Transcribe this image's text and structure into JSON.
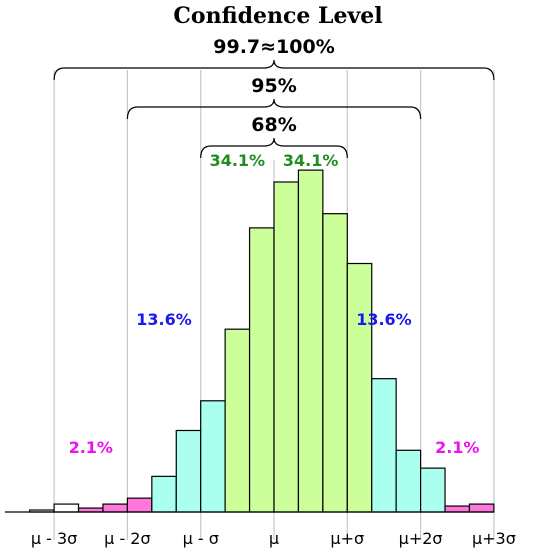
{
  "chart_data": {
    "type": "bar",
    "title": "Confidence Level",
    "xlim": [
      -3.25,
      3.0
    ],
    "ylim": [
      0,
      1
    ],
    "bin_width": 0.3333333,
    "bins": [
      {
        "x": -3.1667,
        "value": 0.006,
        "color": "#ffffff"
      },
      {
        "x": -2.8333,
        "value": 0.024,
        "color": "#ffffff"
      },
      {
        "x": -2.5,
        "value": 0.012,
        "color": "#ff77dd"
      },
      {
        "x": -2.1667,
        "value": 0.024,
        "color": "#ff77dd"
      },
      {
        "x": -1.8333,
        "value": 0.042,
        "color": "#ff77dd"
      },
      {
        "x": -1.5,
        "value": 0.108,
        "color": "#aaffee"
      },
      {
        "x": -1.1667,
        "value": 0.247,
        "color": "#aaffee"
      },
      {
        "x": -0.8333,
        "value": 0.337,
        "color": "#aaffee"
      },
      {
        "x": -0.5,
        "value": 0.554,
        "color": "#ccff99"
      },
      {
        "x": -0.1667,
        "value": 0.861,
        "color": "#ccff99"
      },
      {
        "x": 0.1667,
        "value": 1.0,
        "color": "#ccff99"
      },
      {
        "x": 0.5,
        "value": 1.036,
        "color": "#ccff99"
      },
      {
        "x": 0.8333,
        "value": 0.904,
        "color": "#ccff99"
      },
      {
        "x": 1.1667,
        "value": 0.753,
        "color": "#ccff99"
      },
      {
        "x": 1.5,
        "value": 0.404,
        "color": "#aaffee"
      },
      {
        "x": 1.8333,
        "value": 0.187,
        "color": "#aaffee"
      },
      {
        "x": 2.1667,
        "value": 0.133,
        "color": "#aaffee"
      },
      {
        "x": 2.5,
        "value": 0.018,
        "color": "#ff77dd"
      },
      {
        "x": 2.8333,
        "value": 0.024,
        "color": "#ff77dd"
      }
    ],
    "sigma_lines": [
      -3,
      -2,
      -1,
      0,
      1,
      2,
      3
    ],
    "tick_labels": [
      {
        "x": -3,
        "label": "μ - 3σ"
      },
      {
        "x": -2,
        "label": "μ - 2σ"
      },
      {
        "x": -1,
        "label": "μ - σ"
      },
      {
        "x": 0,
        "label": "μ"
      },
      {
        "x": 1,
        "label": "μ+σ"
      },
      {
        "x": 2,
        "label": "μ+2σ"
      },
      {
        "x": 3,
        "label": "μ+3σ"
      }
    ],
    "braces": [
      {
        "from": -3,
        "to": 3,
        "label": "99.7≈100%"
      },
      {
        "from": -2,
        "to": 2,
        "label": "95%"
      },
      {
        "from": -1,
        "to": 1,
        "label": "68%"
      }
    ],
    "region_labels": [
      {
        "text": "34.1%",
        "color": "#228b22",
        "region": [
          -1,
          0
        ]
      },
      {
        "text": "34.1%",
        "color": "#228b22",
        "region": [
          0,
          1
        ]
      },
      {
        "text": "13.6%",
        "color": "#1a1aee",
        "region": [
          -2,
          -1
        ]
      },
      {
        "text": "13.6%",
        "color": "#1a1aee",
        "region": [
          1,
          2
        ]
      },
      {
        "text": "2.1%",
        "color": "#ee11ee",
        "region": [
          -3,
          -2
        ]
      },
      {
        "text": "2.1%",
        "color": "#ee11ee",
        "region": [
          2,
          3
        ]
      }
    ]
  }
}
